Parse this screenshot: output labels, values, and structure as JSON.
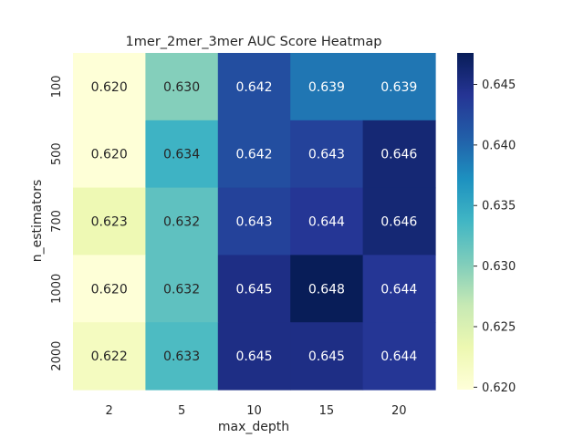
{
  "chart_data": {
    "type": "heatmap",
    "title": "1mer_2mer_3mer AUC Score Heatmap",
    "xlabel": "max_depth",
    "ylabel": "n_estimators",
    "x_categories": [
      "2",
      "5",
      "10",
      "15",
      "20"
    ],
    "y_categories": [
      "100",
      "500",
      "700",
      "1000",
      "2000"
    ],
    "values": [
      [
        0.62,
        0.63,
        0.642,
        0.639,
        0.639
      ],
      [
        0.62,
        0.634,
        0.642,
        0.643,
        0.646
      ],
      [
        0.623,
        0.632,
        0.643,
        0.644,
        0.646
      ],
      [
        0.62,
        0.632,
        0.645,
        0.648,
        0.644
      ],
      [
        0.622,
        0.633,
        0.645,
        0.645,
        0.644
      ]
    ],
    "value_labels": [
      [
        "0.620",
        "0.630",
        "0.642",
        "0.639",
        "0.639"
      ],
      [
        "0.620",
        "0.634",
        "0.642",
        "0.643",
        "0.646"
      ],
      [
        "0.623",
        "0.632",
        "0.643",
        "0.644",
        "0.646"
      ],
      [
        "0.620",
        "0.632",
        "0.645",
        "0.648",
        "0.644"
      ],
      [
        "0.622",
        "0.633",
        "0.645",
        "0.645",
        "0.644"
      ]
    ],
    "colormap": "YlGnBu",
    "colorbar": {
      "range": [
        0.6198,
        0.6476
      ],
      "ticks": [
        0.62,
        0.625,
        0.63,
        0.635,
        0.64,
        0.645
      ],
      "tick_labels": [
        "0.620",
        "0.625",
        "0.630",
        "0.635",
        "0.640",
        "0.645"
      ]
    },
    "grid": false
  }
}
